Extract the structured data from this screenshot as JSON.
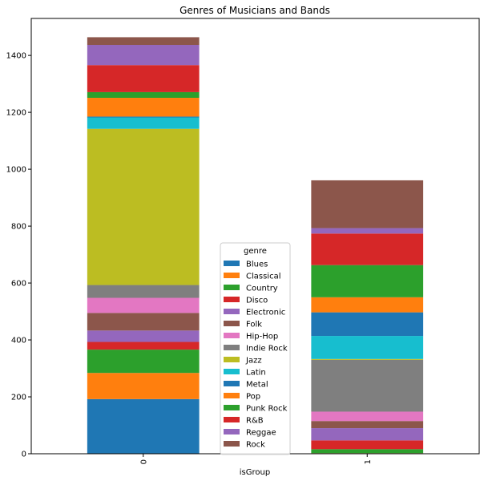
{
  "chart_data": {
    "type": "bar",
    "stacked": true,
    "title": "Genres of Musicians and Bands",
    "xlabel": "isGroup",
    "ylabel": "",
    "categories": [
      "0",
      "1"
    ],
    "ylim": [
      0,
      1530
    ],
    "yticks": [
      0,
      200,
      400,
      600,
      800,
      1000,
      1200,
      1400
    ],
    "legend": {
      "title": "genre",
      "placement": "lower-center"
    },
    "series": [
      {
        "name": "Blues",
        "color": "#1f77b4",
        "values": [
          192,
          1
        ]
      },
      {
        "name": "Classical",
        "color": "#ff7f0e",
        "values": [
          92,
          1
        ]
      },
      {
        "name": "Country",
        "color": "#2ca02c",
        "values": [
          82,
          14
        ]
      },
      {
        "name": "Disco",
        "color": "#d62728",
        "values": [
          27,
          31
        ]
      },
      {
        "name": "Electronic",
        "color": "#9467bd",
        "values": [
          40,
          43
        ]
      },
      {
        "name": "Folk",
        "color": "#8c564b",
        "values": [
          62,
          25
        ]
      },
      {
        "name": "Hip-Hop",
        "color": "#e377c2",
        "values": [
          53,
          33
        ]
      },
      {
        "name": "Indie Rock",
        "color": "#7f7f7f",
        "values": [
          45,
          182
        ]
      },
      {
        "name": "Jazz",
        "color": "#bcbd22",
        "values": [
          549,
          3
        ]
      },
      {
        "name": "Latin",
        "color": "#17becf",
        "values": [
          40,
          81
        ]
      },
      {
        "name": "Metal",
        "color": "#1f77b4",
        "values": [
          3,
          83
        ]
      },
      {
        "name": "Pop",
        "color": "#ff7f0e",
        "values": [
          66,
          53
        ]
      },
      {
        "name": "Punk Rock",
        "color": "#2ca02c",
        "values": [
          20,
          113
        ]
      },
      {
        "name": "R&B",
        "color": "#d62728",
        "values": [
          95,
          111
        ]
      },
      {
        "name": "Reggae",
        "color": "#9467bd",
        "values": [
          71,
          19
        ]
      },
      {
        "name": "Rock",
        "color": "#8c564b",
        "values": [
          27,
          168
        ]
      }
    ]
  }
}
